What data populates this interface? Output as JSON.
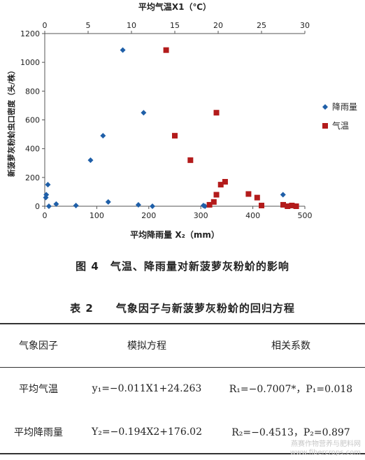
{
  "chart_data": {
    "type": "scatter",
    "top_axis_label": "平均气温X1（℃）",
    "bottom_axis_label": "平均降雨量 X₂（mm）",
    "ylabel": "新菠萝灰粉蚧虫口密度（头/株）",
    "top_xlim": [
      0,
      30
    ],
    "top_ticks": [
      "0",
      "5",
      "10",
      "15",
      "20",
      "25",
      "30"
    ],
    "bottom_xlim": [
      0,
      500
    ],
    "bottom_ticks": [
      "0",
      "100",
      "200",
      "300",
      "400",
      "500"
    ],
    "ylim": [
      0,
      1200
    ],
    "y_ticks": [
      "0",
      "200",
      "400",
      "600",
      "800",
      "1000",
      "1200"
    ],
    "legend_position": "right",
    "series": [
      {
        "name": "降雨量",
        "axis": "bottom",
        "marker": "diamond",
        "color": "#1f5fa8",
        "points": [
          [
            2,
            60
          ],
          [
            3,
            80
          ],
          [
            6,
            150
          ],
          [
            8,
            0
          ],
          [
            22,
            15
          ],
          [
            60,
            5
          ],
          [
            88,
            320
          ],
          [
            112,
            490
          ],
          [
            122,
            30
          ],
          [
            150,
            1085
          ],
          [
            180,
            10
          ],
          [
            190,
            650
          ],
          [
            207,
            0
          ],
          [
            305,
            5
          ],
          [
            308,
            0
          ],
          [
            458,
            80
          ]
        ]
      },
      {
        "name": "气温",
        "axis": "top",
        "marker": "square",
        "color": "#b31b1b",
        "points": [
          [
            14.0,
            1085
          ],
          [
            15.0,
            490
          ],
          [
            16.8,
            320
          ],
          [
            19.8,
            650
          ],
          [
            19.8,
            80
          ],
          [
            20.3,
            150
          ],
          [
            20.8,
            170
          ],
          [
            19.0,
            10
          ],
          [
            19.5,
            30
          ],
          [
            23.5,
            85
          ],
          [
            24.5,
            60
          ],
          [
            25.0,
            5
          ],
          [
            27.5,
            10
          ],
          [
            28.0,
            0
          ],
          [
            28.5,
            5
          ],
          [
            29.0,
            0
          ]
        ]
      }
    ]
  },
  "figure_caption": "图 4　气温、降雨量对新菠萝灰粉蚧的影响",
  "table": {
    "title": "表 2　　气象因子与新菠萝灰粉蚧的回归方程",
    "headers": [
      "气象因子",
      "模拟方程",
      "相关系数"
    ],
    "rows": [
      {
        "factor": "平均气温",
        "equation": "y₁=−0.011X1+24.263",
        "coef": "R₁=−0.7007*，P₁=0.018"
      },
      {
        "factor": "平均降雨量",
        "equation": "Y₂=−0.194X2+176.02",
        "coef": "R₂=−0.4513，P₂=0.897"
      }
    ]
  },
  "watermark": [
    "燕赛作物营养与肥料网",
    "www.fibercrops.com"
  ],
  "colors": {
    "rain": "#1f5fa8",
    "temp": "#b31b1b",
    "axis": "#555555"
  }
}
